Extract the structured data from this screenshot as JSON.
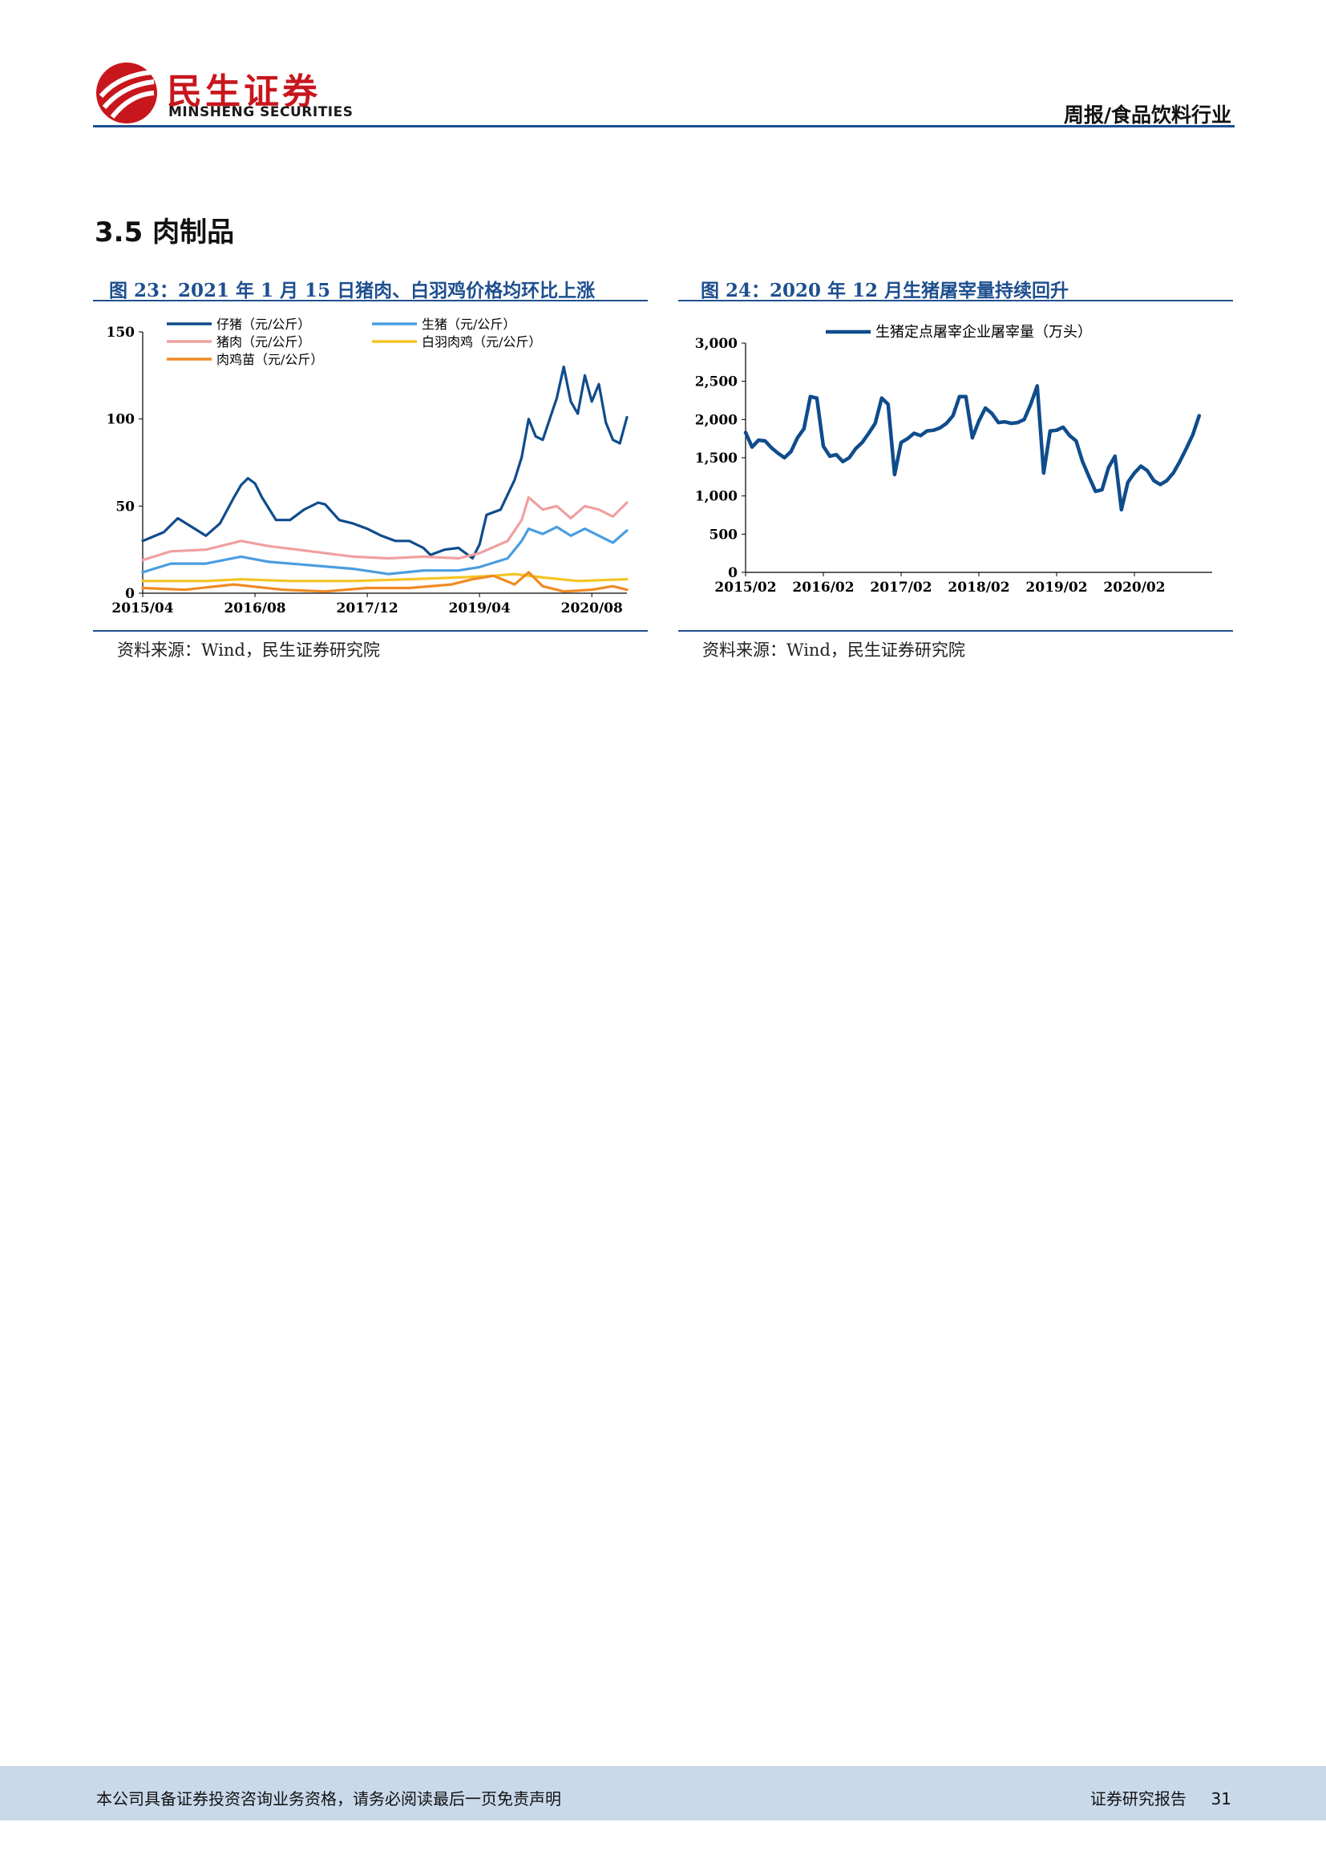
{
  "header": {
    "logo_cn": "民生证券",
    "logo_en": "MINSHENG SECURITIES",
    "report_type": "周报/食品饮料行业"
  },
  "section": {
    "title": "3.5 肉制品"
  },
  "figures": [
    {
      "caption": "图 23：2021 年 1 月 15 日猪肉、白羽鸡价格均环比上涨",
      "source": "资料来源：Wind，民生证券研究院"
    },
    {
      "caption": "图 24：2020 年 12 月生猪屠宰量持续回升",
      "source": "资料来源：Wind，民生证券研究院"
    }
  ],
  "footer": {
    "disclaimer": "本公司具备证券投资咨询业务资格，请务必阅读最后一页免责声明",
    "report_label": "证券研究报告",
    "page_number": "31"
  },
  "chart_data": [
    {
      "type": "line",
      "x_axis": "time",
      "x_ticks": [
        "2015/04",
        "2016/08",
        "2017/12",
        "2019/04",
        "2020/08"
      ],
      "y_ticks": [
        "0",
        "50",
        "100",
        "150"
      ],
      "ylim": [
        0,
        150
      ],
      "xlim": [
        "2015/04",
        "2021/01"
      ],
      "legend_position": "top",
      "series": [
        {
          "name": "仔猪（元/公斤）",
          "color": "#0f4c8c",
          "points": [
            [
              "2015/04",
              30
            ],
            [
              "2015/07",
              35
            ],
            [
              "2015/09",
              43
            ],
            [
              "2015/11",
              38
            ],
            [
              "2016/01",
              33
            ],
            [
              "2016/03",
              40
            ],
            [
              "2016/05",
              55
            ],
            [
              "2016/06",
              62
            ],
            [
              "2016/07",
              66
            ],
            [
              "2016/08",
              63
            ],
            [
              "2016/09",
              55
            ],
            [
              "2016/11",
              42
            ],
            [
              "2017/01",
              42
            ],
            [
              "2017/03",
              48
            ],
            [
              "2017/05",
              52
            ],
            [
              "2017/06",
              51
            ],
            [
              "2017/08",
              42
            ],
            [
              "2017/10",
              40
            ],
            [
              "2017/12",
              37
            ],
            [
              "2018/02",
              33
            ],
            [
              "2018/04",
              30
            ],
            [
              "2018/06",
              30
            ],
            [
              "2018/08",
              26
            ],
            [
              "2018/09",
              22
            ],
            [
              "2018/11",
              25
            ],
            [
              "2019/01",
              26
            ],
            [
              "2019/03",
              20
            ],
            [
              "2019/04",
              28
            ],
            [
              "2019/05",
              45
            ],
            [
              "2019/07",
              48
            ],
            [
              "2019/09",
              65
            ],
            [
              "2019/10",
              78
            ],
            [
              "2019/11",
              100
            ],
            [
              "2019/12",
              90
            ],
            [
              "2020/01",
              88
            ],
            [
              "2020/03",
              112
            ],
            [
              "2020/04",
              130
            ],
            [
              "2020/05",
              110
            ],
            [
              "2020/06",
              103
            ],
            [
              "2020/07",
              125
            ],
            [
              "2020/08",
              110
            ],
            [
              "2020/09",
              120
            ],
            [
              "2020/10",
              98
            ],
            [
              "2020/11",
              88
            ],
            [
              "2020/12",
              86
            ],
            [
              "2021/01",
              101
            ]
          ]
        },
        {
          "name": "生猪（元/公斤）",
          "color": "#4a9de0",
          "points": [
            [
              "2015/04",
              12
            ],
            [
              "2015/08",
              17
            ],
            [
              "2016/01",
              17
            ],
            [
              "2016/06",
              21
            ],
            [
              "2016/10",
              18
            ],
            [
              "2017/04",
              16
            ],
            [
              "2017/10",
              14
            ],
            [
              "2018/03",
              11
            ],
            [
              "2018/08",
              13
            ],
            [
              "2019/01",
              13
            ],
            [
              "2019/04",
              15
            ],
            [
              "2019/08",
              20
            ],
            [
              "2019/10",
              30
            ],
            [
              "2019/11",
              37
            ],
            [
              "2020/01",
              34
            ],
            [
              "2020/03",
              38
            ],
            [
              "2020/05",
              33
            ],
            [
              "2020/07",
              37
            ],
            [
              "2020/09",
              33
            ],
            [
              "2020/11",
              29
            ],
            [
              "2021/01",
              36
            ]
          ]
        },
        {
          "name": "猪肉（元/公斤）",
          "color": "#f0a0a0",
          "points": [
            [
              "2015/04",
              19
            ],
            [
              "2015/08",
              24
            ],
            [
              "2016/01",
              25
            ],
            [
              "2016/06",
              30
            ],
            [
              "2016/10",
              27
            ],
            [
              "2017/04",
              24
            ],
            [
              "2017/10",
              21
            ],
            [
              "2018/03",
              20
            ],
            [
              "2018/08",
              21
            ],
            [
              "2019/01",
              20
            ],
            [
              "2019/04",
              23
            ],
            [
              "2019/08",
              30
            ],
            [
              "2019/10",
              42
            ],
            [
              "2019/11",
              55
            ],
            [
              "2020/01",
              48
            ],
            [
              "2020/03",
              50
            ],
            [
              "2020/05",
              43
            ],
            [
              "2020/07",
              50
            ],
            [
              "2020/09",
              48
            ],
            [
              "2020/11",
              44
            ],
            [
              "2021/01",
              52
            ]
          ]
        },
        {
          "name": "白羽肉鸡（元/公斤）",
          "color": "#f5c425",
          "points": [
            [
              "2015/04",
              7
            ],
            [
              "2016/01",
              7
            ],
            [
              "2016/06",
              8
            ],
            [
              "2017/01",
              7
            ],
            [
              "2017/10",
              7
            ],
            [
              "2018/06",
              8
            ],
            [
              "2019/01",
              9
            ],
            [
              "2019/06",
              10
            ],
            [
              "2019/09",
              11
            ],
            [
              "2020/01",
              9
            ],
            [
              "2020/06",
              7
            ],
            [
              "2021/01",
              8
            ]
          ]
        },
        {
          "name": "肉鸡苗（元/公斤）",
          "color": "#f08a24",
          "points": [
            [
              "2015/04",
              3
            ],
            [
              "2015/10",
              2
            ],
            [
              "2016/05",
              5
            ],
            [
              "2016/12",
              2
            ],
            [
              "2017/06",
              1
            ],
            [
              "2017/12",
              3
            ],
            [
              "2018/06",
              3
            ],
            [
              "2018/12",
              5
            ],
            [
              "2019/03",
              8
            ],
            [
              "2019/06",
              10
            ],
            [
              "2019/09",
              5
            ],
            [
              "2019/11",
              12
            ],
            [
              "2020/01",
              4
            ],
            [
              "2020/04",
              1
            ],
            [
              "2020/08",
              2
            ],
            [
              "2020/11",
              4
            ],
            [
              "2021/01",
              2
            ]
          ]
        }
      ]
    },
    {
      "type": "line",
      "x_axis": "time",
      "x_ticks": [
        "2015/02",
        "2016/02",
        "2017/02",
        "2018/02",
        "2019/02",
        "2020/02"
      ],
      "y_ticks": [
        "0",
        "500",
        "1,000",
        "1,500",
        "2,000",
        "2,500",
        "3,000"
      ],
      "ylim": [
        0,
        3000
      ],
      "xlim": [
        "2015/02",
        "2021/02"
      ],
      "legend_position": "top",
      "series": [
        {
          "name": "生猪定点屠宰企业屠宰量（万头）",
          "color": "#0f4c8c",
          "points": [
            [
              "2015/02",
              1830
            ],
            [
              "2015/03",
              1640
            ],
            [
              "2015/04",
              1730
            ],
            [
              "2015/05",
              1720
            ],
            [
              "2015/06",
              1630
            ],
            [
              "2015/07",
              1560
            ],
            [
              "2015/08",
              1500
            ],
            [
              "2015/09",
              1580
            ],
            [
              "2015/10",
              1760
            ],
            [
              "2015/11",
              1880
            ],
            [
              "2015/12",
              2300
            ],
            [
              "2016/01",
              2280
            ],
            [
              "2016/02",
              1650
            ],
            [
              "2016/03",
              1520
            ],
            [
              "2016/04",
              1540
            ],
            [
              "2016/05",
              1450
            ],
            [
              "2016/06",
              1500
            ],
            [
              "2016/07",
              1620
            ],
            [
              "2016/08",
              1700
            ],
            [
              "2016/09",
              1820
            ],
            [
              "2016/10",
              1950
            ],
            [
              "2016/11",
              2280
            ],
            [
              "2016/12",
              2200
            ],
            [
              "2017/01",
              1280
            ],
            [
              "2017/02",
              1700
            ],
            [
              "2017/03",
              1750
            ],
            [
              "2017/04",
              1820
            ],
            [
              "2017/05",
              1790
            ],
            [
              "2017/06",
              1850
            ],
            [
              "2017/07",
              1860
            ],
            [
              "2017/08",
              1890
            ],
            [
              "2017/09",
              1950
            ],
            [
              "2017/10",
              2050
            ],
            [
              "2017/11",
              2300
            ],
            [
              "2017/12",
              2300
            ],
            [
              "2018/01",
              1760
            ],
            [
              "2018/02",
              1980
            ],
            [
              "2018/03",
              2150
            ],
            [
              "2018/04",
              2080
            ],
            [
              "2018/05",
              1960
            ],
            [
              "2018/06",
              1970
            ],
            [
              "2018/07",
              1950
            ],
            [
              "2018/08",
              1960
            ],
            [
              "2018/09",
              2000
            ],
            [
              "2018/10",
              2200
            ],
            [
              "2018/11",
              2440
            ],
            [
              "2018/12",
              1300
            ],
            [
              "2019/01",
              1850
            ],
            [
              "2019/02",
              1860
            ],
            [
              "2019/03",
              1900
            ],
            [
              "2019/04",
              1790
            ],
            [
              "2019/05",
              1720
            ],
            [
              "2019/06",
              1450
            ],
            [
              "2019/07",
              1250
            ],
            [
              "2019/08",
              1060
            ],
            [
              "2019/09",
              1080
            ],
            [
              "2019/10",
              1370
            ],
            [
              "2019/11",
              1520
            ],
            [
              "2019/12",
              820
            ],
            [
              "2020/01",
              1180
            ],
            [
              "2020/02",
              1300
            ],
            [
              "2020/03",
              1390
            ],
            [
              "2020/04",
              1330
            ],
            [
              "2020/05",
              1200
            ],
            [
              "2020/06",
              1150
            ],
            [
              "2020/07",
              1200
            ],
            [
              "2020/08",
              1300
            ],
            [
              "2020/09",
              1450
            ],
            [
              "2020/10",
              1620
            ],
            [
              "2020/11",
              1800
            ],
            [
              "2020/12",
              2050
            ]
          ]
        }
      ]
    }
  ]
}
